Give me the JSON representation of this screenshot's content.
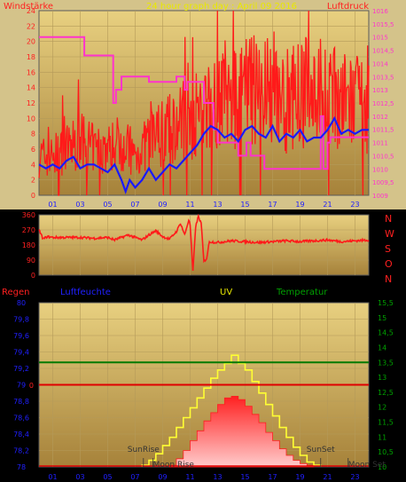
{
  "title": "24 hour graph day : April 09 2016",
  "hour_ticks": [
    "01",
    "03",
    "05",
    "07",
    "09",
    "11",
    "13",
    "15",
    "17",
    "19",
    "21",
    "23"
  ],
  "top_chart": {
    "left_label": "Windstärke",
    "right_label": "Luftdruck",
    "left_ticks": [
      "0",
      "2",
      "4",
      "6",
      "8",
      "10",
      "12",
      "14",
      "16",
      "18",
      "20",
      "22",
      "24"
    ],
    "right_ticks": [
      "1009",
      "1009,5",
      "1010",
      "1010,5",
      "1011",
      "1011,5",
      "1012",
      "1012,5",
      "1013",
      "1013,5",
      "1014",
      "1014,5",
      "1015",
      "1015,5",
      "1016"
    ],
    "chart_data": {
      "type": "line",
      "x_unit": "hour",
      "x_range": [
        0,
        24
      ],
      "y_left_range": [
        0,
        24
      ],
      "y_right_range": [
        1009,
        1016
      ],
      "series": [
        {
          "name": "Windstärke",
          "axis": "left",
          "color": "#ff1a1a",
          "style": "spiky",
          "x": [
            0,
            1,
            2,
            3,
            4,
            5,
            6,
            7,
            8,
            9,
            10,
            11,
            12,
            13,
            14,
            15,
            16,
            17,
            18,
            19,
            20,
            21,
            22,
            23,
            24
          ],
          "y": [
            5,
            5,
            6,
            7,
            6,
            6,
            7,
            5,
            7,
            8,
            9,
            10,
            11,
            13,
            12,
            13,
            14,
            13,
            12,
            13,
            14,
            13,
            12,
            12,
            11
          ]
        },
        {
          "name": "",
          "axis": "left",
          "color": "#1a1aff",
          "x": [
            0,
            0.5,
            1,
            1.5,
            2,
            2.5,
            3,
            3.5,
            4,
            4.5,
            5,
            5.5,
            6,
            6.3,
            6.6,
            7,
            7.5,
            8,
            8.5,
            9,
            9.5,
            10,
            10.5,
            11,
            11.5,
            12,
            12.5,
            13,
            13.5,
            14,
            14.5,
            15,
            15.5,
            16,
            16.5,
            17,
            17.5,
            18,
            18.5,
            19,
            19.5,
            20,
            20.5,
            21,
            21.5,
            22,
            22.5,
            23,
            23.5,
            24
          ],
          "y": [
            4,
            3.5,
            4,
            3.5,
            4.5,
            5,
            3.5,
            4,
            4,
            3.5,
            3,
            4,
            2,
            0.5,
            2,
            1,
            2,
            3.5,
            2,
            3,
            4,
            3.5,
            4.5,
            5.5,
            6.5,
            8,
            9,
            8.5,
            7.5,
            8,
            7,
            8.5,
            9,
            8,
            7.5,
            9,
            7,
            8,
            7.5,
            8.5,
            7,
            7.5,
            7.5,
            8.5,
            10,
            8,
            8.5,
            8,
            8.5,
            8.5
          ]
        },
        {
          "name": "Luftdruck",
          "axis": "right",
          "color": "#ff33cc",
          "style": "step",
          "x": [
            0,
            3.3,
            3.3,
            5.4,
            5.4,
            5.6,
            5.6,
            6,
            6,
            8,
            8,
            10,
            10,
            10.6,
            10.6,
            10.8,
            10.8,
            12,
            12,
            12.7,
            12.7,
            13,
            13,
            14.5,
            14.5,
            15.1,
            15.1,
            15.4,
            15.4,
            16.4,
            16.4,
            20.5,
            20.5,
            20.7,
            20.7,
            21,
            21,
            21.2,
            21.2,
            24
          ],
          "y": [
            1015,
            1015,
            1014.3,
            1014.3,
            1012.5,
            1012.5,
            1013,
            1013,
            1013.5,
            1013.5,
            1013.3,
            1013.3,
            1013.5,
            1013.5,
            1013,
            1013,
            1013.3,
            1013.3,
            1012.5,
            1012.5,
            1011.5,
            1011.5,
            1011,
            1011,
            1010.5,
            1010.5,
            1011,
            1011,
            1010.5,
            1010.5,
            1010,
            1010,
            1012,
            1012,
            1010,
            1010,
            1011,
            1011,
            1011.2,
            1011.2
          ]
        }
      ]
    }
  },
  "direction_chart": {
    "left_ticks": [
      "0",
      "90",
      "180",
      "270",
      "360"
    ],
    "compass": [
      "N",
      "W",
      "S",
      "O",
      "N"
    ],
    "chart_data": {
      "type": "line",
      "y_range": [
        0,
        360
      ],
      "series": [
        {
          "name": "",
          "color": "#ff1a1a",
          "x": [
            0,
            0.3,
            0.6,
            1,
            2,
            3,
            4,
            5,
            5.5,
            6,
            6.5,
            7,
            7.5,
            8,
            8.5,
            9,
            9.5,
            10,
            10.3,
            10.6,
            10.9,
            11,
            11.2,
            11.4,
            11.6,
            11.8,
            12,
            12.2,
            12.4,
            13,
            14,
            15,
            16,
            17,
            18,
            19,
            20,
            21,
            22,
            23,
            24
          ],
          "y": [
            270,
            215,
            230,
            225,
            225,
            225,
            220,
            225,
            210,
            225,
            240,
            225,
            210,
            240,
            265,
            230,
            215,
            260,
            310,
            240,
            330,
            300,
            20,
            290,
            350,
            310,
            80,
            100,
            200,
            195,
            205,
            200,
            195,
            200,
            205,
            200,
            205,
            210,
            200,
            205,
            210
          ]
        }
      ]
    }
  },
  "bottom_chart": {
    "header": {
      "regen": "Regen",
      "luftfeuchte": "Luftfeuchte",
      "uv": "UV",
      "temperatur": "Temperatur"
    },
    "left_ticks": [
      "78",
      "78,2",
      "78,4",
      "78,6",
      "78,8",
      "79",
      "79,2",
      "79,4",
      "79,6",
      "79,8",
      "80"
    ],
    "right_ticks": [
      "10",
      "10,5",
      "11",
      "11,5",
      "12",
      "12,5",
      "13",
      "13,5",
      "14",
      "14,5",
      "15",
      "15,5"
    ],
    "zero_label": "0",
    "annotations": {
      "sunrise": "SunRise",
      "moonrise": "Moon Rise",
      "sunset": "SunSet",
      "moonset": "Moon Set"
    },
    "chart_data": {
      "type": "area",
      "x_range": [
        0,
        24
      ],
      "y_left_range": [
        78,
        80
      ],
      "y_right_range": [
        10,
        15.5
      ],
      "series": [
        {
          "name": "Temperatur",
          "axis": "right",
          "color": "#007a00",
          "x": [
            0,
            24
          ],
          "y": [
            13.5,
            13.5
          ]
        },
        {
          "name": "Regen",
          "axis": "left",
          "color": "#e00000",
          "x": [
            0,
            24
          ],
          "y": [
            79,
            79
          ]
        },
        {
          "name": "UV",
          "color": "#ffff33",
          "style": "step",
          "x": [
            7.5,
            8.0,
            8.5,
            9.0,
            9.5,
            10,
            10.5,
            11,
            11.5,
            12,
            12.5,
            13,
            13.5,
            14,
            14.5,
            15,
            15.5,
            16,
            16.5,
            17,
            17.5,
            18,
            18.5,
            19,
            19.5,
            20
          ],
          "y": [
            0.1,
            0.4,
            0.8,
            1.3,
            1.8,
            2.4,
            3.0,
            3.6,
            4.2,
            4.8,
            5.4,
            5.9,
            6.3,
            6.8,
            6.3,
            5.9,
            5.2,
            4.5,
            3.8,
            3.1,
            2.4,
            1.8,
            1.2,
            0.7,
            0.3,
            0.1
          ]
        },
        {
          "name": "",
          "color": "#ff2a2a",
          "style": "filled-step",
          "x": [
            9.5,
            10,
            10.5,
            11,
            11.5,
            12,
            12.5,
            13,
            13.5,
            14,
            14.5,
            15,
            15.5,
            16,
            16.5,
            17,
            17.5,
            18,
            18.5,
            19,
            19.5
          ],
          "y": [
            0.1,
            0.5,
            1.0,
            1.6,
            2.2,
            2.8,
            3.3,
            3.8,
            4.2,
            4.3,
            4.1,
            3.7,
            3.2,
            2.7,
            2.1,
            1.6,
            1.1,
            0.7,
            0.4,
            0.2,
            0.1
          ]
        }
      ],
      "events": {
        "sunrise": 7.6,
        "moonrise": 8.3,
        "sunset": 20.5,
        "moonset": 22.5
      }
    }
  },
  "colors": {
    "wind": "#ff1a1a",
    "wind_avg": "#1a1aff",
    "pressure": "#ff33cc",
    "label_red": "#ff2020",
    "label_blue": "#2020ff",
    "label_green": "#00a000",
    "title_yellow": "#e8e800",
    "plot_top": "#e8cf80",
    "plot_bottom": "#a8843c"
  }
}
